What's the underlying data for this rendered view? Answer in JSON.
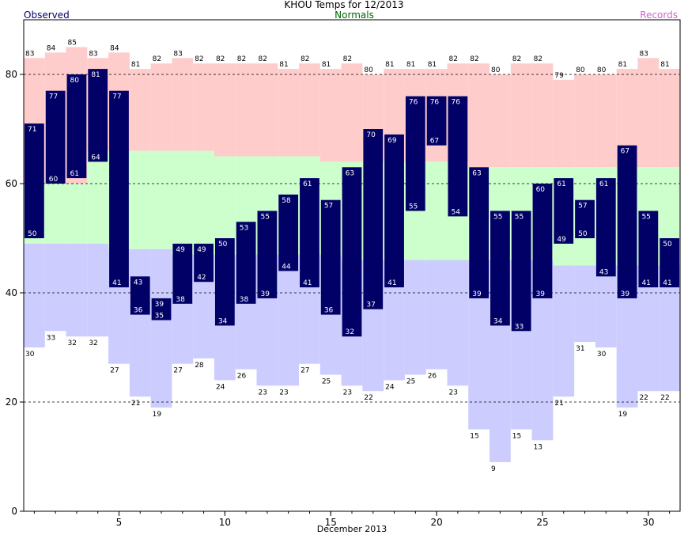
{
  "header": {
    "title": "KHOU Temps for 12/2013",
    "observed_label": "Observed",
    "normals_label": "Normals",
    "records_label": "Records"
  },
  "colors": {
    "record_high": "#ffcccc",
    "normal": "#ccffcc",
    "record_low": "#ccccff",
    "observed": "#000066",
    "observed_text": "#ffffff",
    "title_observed": "#000066",
    "title_normals": "#006600",
    "title_records": "#cc66cc"
  },
  "chart_data": {
    "type": "bar",
    "title": "KHOU Temps for 12/2013",
    "xlabel": "December 2013",
    "ylabel": "",
    "ylim": [
      0,
      90
    ],
    "xlim": [
      0.5,
      31.5
    ],
    "yticks": [
      0,
      20,
      40,
      60,
      80
    ],
    "xticks": [
      5,
      10,
      15,
      20,
      25,
      30
    ],
    "grid_y": [
      20,
      40,
      60,
      80
    ],
    "days": [
      1,
      2,
      3,
      4,
      5,
      6,
      7,
      8,
      9,
      10,
      11,
      12,
      13,
      14,
      15,
      16,
      17,
      18,
      19,
      20,
      21,
      22,
      23,
      24,
      25,
      26,
      27,
      28,
      29,
      30,
      31
    ],
    "record_high": [
      83,
      84,
      85,
      83,
      84,
      81,
      82,
      83,
      82,
      82,
      82,
      82,
      81,
      82,
      81,
      82,
      80,
      81,
      81,
      81,
      82,
      82,
      80,
      82,
      82,
      79,
      80,
      80,
      81,
      83,
      81
    ],
    "normal_high": [
      null,
      60,
      60,
      null,
      66,
      66,
      66,
      66,
      66,
      65,
      65,
      65,
      65,
      65,
      64,
      64,
      64,
      64,
      64,
      64,
      64,
      63,
      63,
      63,
      63,
      63,
      63,
      63,
      63,
      63,
      63
    ],
    "normal_low": [
      49,
      49,
      49,
      49,
      48,
      48,
      48,
      47,
      47,
      47,
      47,
      47,
      47,
      47,
      47,
      46,
      46,
      46,
      46,
      46,
      46,
      46,
      46,
      46,
      46,
      45,
      45,
      45,
      45,
      45,
      45
    ],
    "record_low": [
      30,
      33,
      32,
      32,
      27,
      21,
      19,
      27,
      28,
      24,
      26,
      23,
      23,
      27,
      25,
      23,
      22,
      24,
      25,
      26,
      23,
      15,
      9,
      15,
      13,
      21,
      31,
      30,
      19,
      22,
      22
    ],
    "observed_high": [
      71,
      77,
      80,
      81,
      77,
      43,
      39,
      49,
      49,
      50,
      53,
      55,
      58,
      61,
      57,
      63,
      70,
      69,
      76,
      76,
      76,
      63,
      55,
      55,
      60,
      61,
      57,
      61,
      67,
      55,
      50
    ],
    "observed_low": [
      50,
      60,
      61,
      64,
      41,
      36,
      35,
      38,
      42,
      34,
      38,
      39,
      44,
      41,
      36,
      32,
      37,
      41,
      55,
      67,
      54,
      39,
      34,
      33,
      39,
      49,
      50,
      43,
      39,
      41,
      41
    ]
  }
}
